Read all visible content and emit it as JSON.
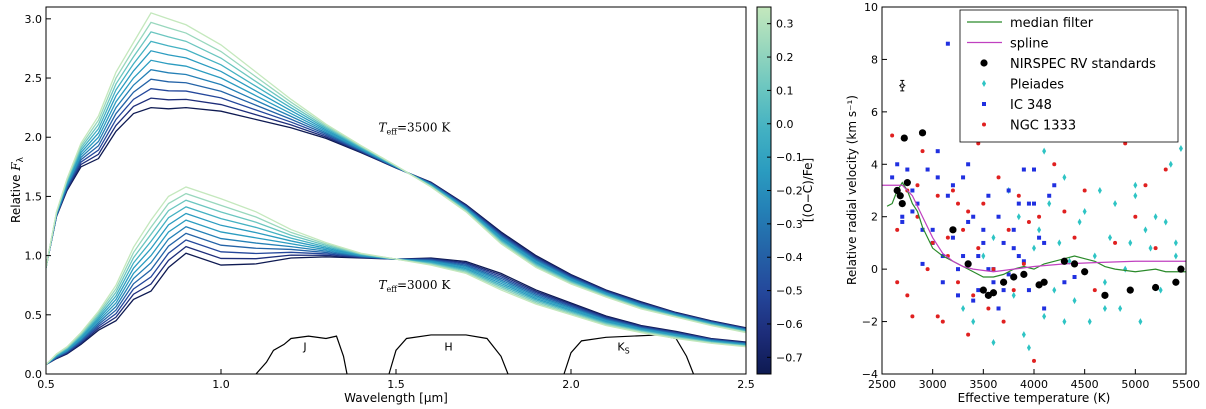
{
  "chart_data": [
    {
      "type": "line",
      "xlabel": "Wavelength [μm]",
      "ylabel": "Relative F_λ",
      "xlim": [
        0.5,
        2.5
      ],
      "ylim": [
        0.0,
        3.1
      ],
      "xticks": [
        0.5,
        1.0,
        1.5,
        2.0,
        2.5
      ],
      "xtick_labels": [
        "0.5",
        "1.0",
        "1.5",
        "2.0",
        "2.5"
      ],
      "yticks": [
        0.0,
        0.5,
        1.0,
        1.5,
        2.0,
        2.5,
        3.0
      ],
      "ytick_labels": [
        "0.0",
        "0.5",
        "1.0",
        "1.5",
        "2.0",
        "2.5",
        "3.0"
      ],
      "colorbar": {
        "label": "[(O−C)/Fe]",
        "range": [
          -0.75,
          0.35
        ],
        "ticks": [
          0.3,
          0.2,
          0.1,
          0.0,
          -0.1,
          -0.2,
          -0.3,
          -0.4,
          -0.5,
          -0.6,
          -0.7
        ],
        "tick_labels": [
          "0.3",
          "0.2",
          "0.1",
          "0.0",
          "−0.1",
          "−0.2",
          "−0.3",
          "−0.4",
          "−0.5",
          "−0.6",
          "−0.7"
        ],
        "colors": [
          "#0e1a52",
          "#1d2d7a",
          "#24479b",
          "#2463a7",
          "#2480b6",
          "#2b9cc0",
          "#43b1c2",
          "#6bc6c0",
          "#98d7bd",
          "#c4e8bd"
        ]
      },
      "annotations": [
        {
          "prefix": "T",
          "sub": "eff",
          "suffix": "=3500 K",
          "x": 1.45,
          "y": 2.05
        },
        {
          "prefix": "T",
          "sub": "eff",
          "suffix": "=3000 K",
          "x": 1.45,
          "y": 0.72
        }
      ],
      "filter_bands": [
        {
          "label": "J",
          "sub": "",
          "x": 1.24,
          "y": 0.2
        },
        {
          "label": "H",
          "sub": "",
          "x": 1.65,
          "y": 0.2
        },
        {
          "label": "K",
          "sub": "S",
          "x": 2.15,
          "y": 0.2
        }
      ],
      "series_groups": [
        {
          "teff": 3500,
          "metallicity_values": [
            -0.7,
            -0.6,
            -0.5,
            -0.4,
            -0.3,
            -0.2,
            -0.1,
            0.0,
            0.1,
            0.2,
            0.3
          ],
          "x": [
            0.5,
            0.53,
            0.56,
            0.6,
            0.65,
            0.7,
            0.75,
            0.8,
            0.85,
            0.9,
            1.0,
            1.1,
            1.2,
            1.3,
            1.4,
            1.5,
            1.6,
            1.7,
            1.8,
            1.9,
            2.0,
            2.1,
            2.2,
            2.3,
            2.4,
            2.5
          ],
          "base_values": [
            0.9,
            1.35,
            1.6,
            1.85,
            2.0,
            2.3,
            2.5,
            2.65,
            2.62,
            2.6,
            2.5,
            2.35,
            2.2,
            2.05,
            1.9,
            1.75,
            1.6,
            1.4,
            1.15,
            0.95,
            0.8,
            0.68,
            0.58,
            0.5,
            0.43,
            0.37
          ],
          "spread": [
            0.0,
            0.02,
            0.05,
            0.1,
            0.18,
            0.25,
            0.3,
            0.4,
            0.38,
            0.35,
            0.28,
            0.2,
            0.12,
            0.06,
            0.03,
            0.01,
            -0.02,
            -0.03,
            -0.05,
            -0.05,
            -0.04,
            -0.03,
            -0.03,
            -0.02,
            -0.02,
            -0.02
          ]
        },
        {
          "teff": 3000,
          "metallicity_values": [
            -0.7,
            -0.6,
            -0.5,
            -0.4,
            -0.3,
            -0.2,
            -0.1,
            0.0,
            0.1,
            0.2,
            0.3
          ],
          "x": [
            0.5,
            0.53,
            0.56,
            0.6,
            0.65,
            0.7,
            0.75,
            0.8,
            0.85,
            0.9,
            1.0,
            1.1,
            1.2,
            1.3,
            1.4,
            1.5,
            1.6,
            1.7,
            1.8,
            1.9,
            2.0,
            2.1,
            2.2,
            2.3,
            2.4,
            2.5
          ],
          "base_values": [
            0.08,
            0.15,
            0.2,
            0.3,
            0.45,
            0.6,
            0.85,
            1.0,
            1.2,
            1.3,
            1.2,
            1.15,
            1.1,
            1.05,
            1.0,
            0.97,
            0.95,
            0.9,
            0.78,
            0.65,
            0.55,
            0.45,
            0.38,
            0.33,
            0.28,
            0.25
          ],
          "spread": [
            0.0,
            0.02,
            0.03,
            0.05,
            0.08,
            0.15,
            0.22,
            0.3,
            0.3,
            0.28,
            0.28,
            0.22,
            0.12,
            0.06,
            0.02,
            0.0,
            -0.03,
            -0.05,
            -0.07,
            -0.06,
            -0.05,
            -0.04,
            -0.03,
            -0.03,
            -0.02,
            -0.02
          ]
        }
      ]
    },
    {
      "type": "scatter",
      "xlabel": "Effective temperature (K)",
      "ylabel": "Relative radial velocity (km s⁻¹)",
      "xlim": [
        2500,
        5500
      ],
      "ylim": [
        -4,
        10
      ],
      "xticks": [
        2500,
        3000,
        3500,
        4000,
        4500,
        5000,
        5500
      ],
      "xtick_labels": [
        "2500",
        "3000",
        "3500",
        "4000",
        "4500",
        "5000",
        "5500"
      ],
      "yticks": [
        -4,
        -2,
        0,
        2,
        4,
        6,
        8,
        10
      ],
      "ytick_labels": [
        "−4",
        "−2",
        "0",
        "2",
        "4",
        "6",
        "8",
        "10"
      ],
      "legend": {
        "placement": "top-right",
        "entries": [
          {
            "label": "median filter",
            "kind": "line",
            "color": "#2a8a2a"
          },
          {
            "label": "spline",
            "kind": "line",
            "color": "#c040c0"
          },
          {
            "label": "NIRSPEC RV standards",
            "kind": "circle",
            "color": "#000000"
          },
          {
            "label": "Pleiades",
            "kind": "diamond",
            "color": "#2ec4c4"
          },
          {
            "label": "IC 348",
            "kind": "square",
            "color": "#2030e0"
          },
          {
            "label": "NGC 1333",
            "kind": "dot",
            "color": "#e02020"
          }
        ]
      },
      "error_bar": {
        "x": 2700,
        "y": 7.0,
        "yerr": 0.2,
        "xerr": 30
      },
      "series": [
        {
          "name": "median filter",
          "type": "line",
          "color": "#2a8a2a",
          "x": [
            2550,
            2600,
            2650,
            2700,
            2750,
            2800,
            2850,
            2900,
            3000,
            3100,
            3200,
            3300,
            3400,
            3500,
            3600,
            3700,
            3800,
            3900,
            4000,
            4100,
            4200,
            4300,
            4400,
            4500,
            4600,
            4700,
            4800,
            5000,
            5200,
            5300,
            5400,
            5500
          ],
          "y": [
            2.4,
            2.5,
            3.0,
            3.3,
            3.0,
            2.5,
            2.2,
            1.6,
            0.8,
            0.5,
            0.3,
            0.1,
            -0.1,
            -0.3,
            -0.3,
            -0.2,
            0.0,
            0.1,
            0.0,
            0.2,
            0.3,
            0.4,
            0.5,
            0.4,
            0.3,
            0.1,
            0.0,
            -0.1,
            0.0,
            -0.1,
            -0.1,
            -0.1
          ]
        },
        {
          "name": "spline",
          "type": "line",
          "color": "#c040c0",
          "x": [
            2500,
            2700,
            2800,
            2900,
            3000,
            3100,
            3200,
            3300,
            3400,
            3600,
            3800,
            4000,
            4300,
            4600,
            5000,
            5500
          ],
          "y": [
            3.2,
            3.2,
            2.8,
            2.0,
            1.2,
            0.6,
            0.3,
            0.1,
            0.0,
            -0.1,
            0.0,
            0.1,
            0.2,
            0.25,
            0.3,
            0.3
          ]
        },
        {
          "name": "NIRSPEC RV standards",
          "type": "scatter",
          "color": "#000000",
          "x": [
            2650,
            2680,
            2700,
            2720,
            2750,
            2900,
            3200,
            3350,
            3500,
            3550,
            3600,
            3700,
            3800,
            3900,
            4050,
            4100,
            4300,
            4400,
            4500,
            4700,
            4950,
            5200,
            5400,
            5450
          ],
          "y": [
            3.0,
            2.8,
            2.5,
            5.0,
            3.3,
            5.2,
            1.5,
            0.2,
            -0.8,
            -1.0,
            -0.9,
            -0.5,
            -0.3,
            -0.2,
            -0.6,
            -0.5,
            0.3,
            0.2,
            -0.1,
            -1.0,
            -0.8,
            -0.7,
            -0.5,
            0.0
          ]
        },
        {
          "name": "Pleiades",
          "type": "scatter",
          "color": "#2ec4c4",
          "x": [
            3300,
            3400,
            3500,
            3600,
            3700,
            3800,
            3850,
            3900,
            3950,
            4000,
            4050,
            4100,
            4150,
            4200,
            4250,
            4300,
            4350,
            4400,
            4450,
            4500,
            4550,
            4600,
            4650,
            4700,
            4750,
            4800,
            4850,
            4900,
            4950,
            5000,
            5050,
            5100,
            5150,
            5200,
            5250,
            5300,
            5350,
            5400,
            5450,
            3600,
            3750,
            4100,
            4300,
            4700,
            5000,
            5400
          ],
          "y": [
            -1.5,
            -2.0,
            0.5,
            1.2,
            -0.5,
            -1.0,
            2.0,
            -2.5,
            -3.0,
            0.8,
            1.5,
            -1.8,
            2.5,
            -0.8,
            1.0,
            3.5,
            0.3,
            -1.2,
            1.8,
            2.2,
            -2.0,
            0.5,
            3.0,
            -0.5,
            1.2,
            2.5,
            -1.5,
            0.0,
            1.0,
            3.2,
            -2.0,
            1.5,
            0.8,
            2.0,
            -0.8,
            1.8,
            4.0,
            0.5,
            4.6,
            -2.8,
            3.0,
            4.5,
            -2.0,
            -1.5,
            2.8,
            1.0
          ]
        },
        {
          "name": "IC 348",
          "type": "scatter",
          "color": "#2030e0",
          "x": [
            2600,
            2650,
            2700,
            2750,
            2800,
            2850,
            2900,
            2950,
            3000,
            3050,
            3100,
            3150,
            3200,
            3250,
            3300,
            3350,
            3400,
            3450,
            3500,
            3550,
            3600,
            3650,
            3700,
            3750,
            3800,
            3850,
            3900,
            3950,
            4000,
            4050,
            4100,
            4150,
            3050,
            3150,
            3250,
            3350,
            3450,
            3550,
            3650,
            3750,
            3850,
            3950,
            2700,
            2800,
            2900,
            3000,
            3100,
            3200,
            3300,
            3400,
            3500,
            3600,
            3700,
            3800,
            3900,
            4000,
            4100,
            4200,
            4300,
            4400,
            5400
          ],
          "y": [
            3.5,
            4.0,
            2.0,
            3.8,
            3.0,
            2.5,
            1.5,
            3.8,
            1.0,
            4.5,
            0.5,
            2.8,
            1.2,
            0.0,
            3.5,
            1.8,
            2.0,
            0.5,
            1.5,
            0.0,
            -0.5,
            2.0,
            1.0,
            -0.2,
            0.8,
            2.5,
            0.3,
            -0.8,
            3.8,
            1.2,
            -1.5,
            2.8,
            3.5,
            8.6,
            -1.0,
            4.0,
            -0.8,
            2.8,
            -1.5,
            3.0,
            0.5,
            2.5,
            1.8,
            2.2,
            0.2,
            1.5,
            -0.5,
            3.2,
            0.5,
            -1.2,
            1.0,
            0.0,
            -0.8,
            1.5,
            3.8,
            2.5,
            1.0,
            3.2,
            -0.5,
            -0.3,
            5.0
          ]
        },
        {
          "name": "NGC 1333",
          "type": "scatter",
          "color": "#e02020",
          "x": [
            2600,
            2650,
            2700,
            2750,
            2800,
            2850,
            2900,
            2950,
            3000,
            3050,
            3100,
            3150,
            3200,
            3250,
            3300,
            3350,
            3400,
            3450,
            3500,
            3550,
            3600,
            3650,
            3700,
            3750,
            3800,
            3850,
            3900,
            3950,
            4000,
            4050,
            4100,
            4200,
            4300,
            4400,
            4500,
            4600,
            4800,
            4900,
            5000,
            5100,
            5200,
            5300,
            2650,
            2750,
            2850,
            3050,
            3150,
            3250,
            3350,
            3450
          ],
          "y": [
            5.1,
            -0.5,
            2.5,
            3.0,
            -1.8,
            2.0,
            4.5,
            0.0,
            1.0,
            2.8,
            -2.0,
            0.5,
            3.0,
            -0.5,
            1.5,
            2.2,
            -1.0,
            0.8,
            2.5,
            -1.5,
            0.0,
            3.5,
            -2.0,
            1.5,
            -0.8,
            2.8,
            0.2,
            1.8,
            -3.5,
            2.0,
            -0.5,
            4.0,
            2.2,
            1.2,
            3.0,
            -0.8,
            1.0,
            4.8,
            2.0,
            3.2,
            0.8,
            3.8,
            1.5,
            -1.0,
            3.2,
            -1.8,
            1.2,
            2.5,
            -2.5,
            4.8
          ]
        }
      ]
    }
  ]
}
